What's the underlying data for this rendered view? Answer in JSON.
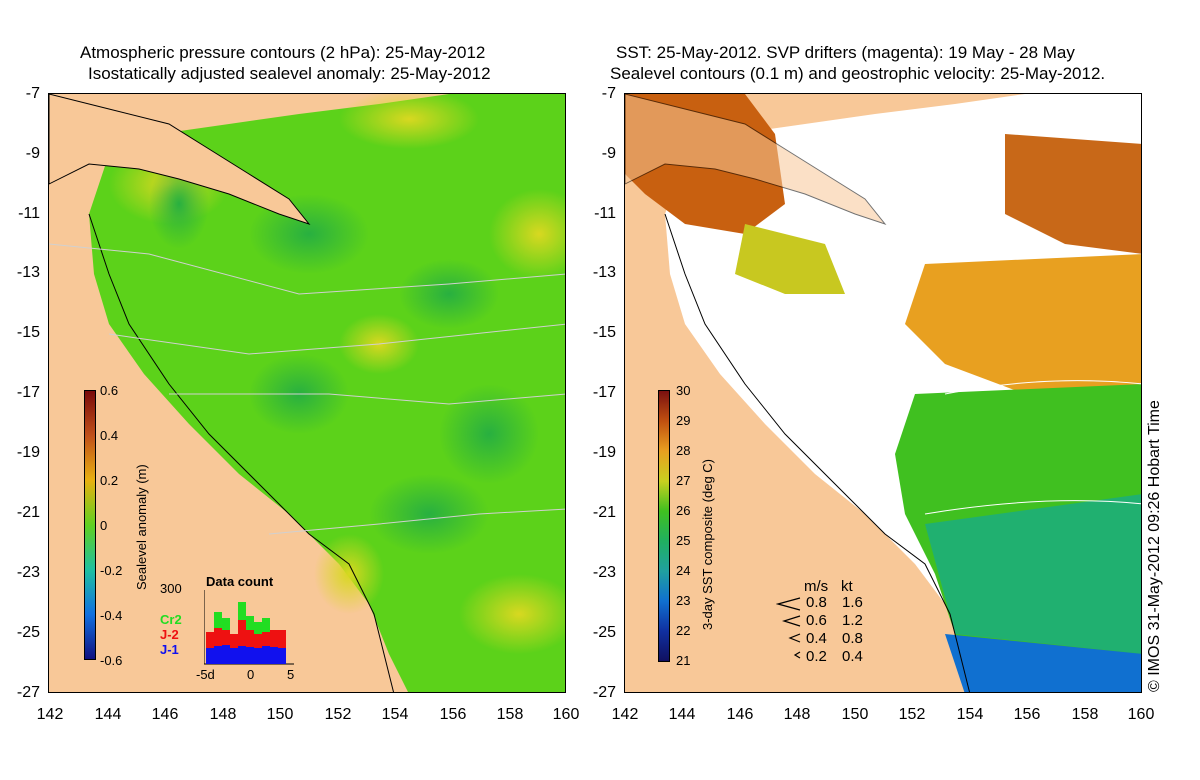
{
  "left_panel": {
    "title_line1": "Atmospheric pressure contours (2 hPa): 25-May-2012",
    "title_line2": "Isostatically adjusted sealevel anomaly: 25-May-2012",
    "y_ticks": [
      "-7",
      "-9",
      "-11",
      "-13",
      "-15",
      "-17",
      "-19",
      "-21",
      "-23",
      "-25",
      "-27"
    ],
    "x_ticks": [
      "142",
      "144",
      "146",
      "148",
      "150",
      "152",
      "154",
      "156",
      "158",
      "160"
    ],
    "colorbar": {
      "title": "Sealevel anomaly (m)",
      "ticks": [
        "0.6",
        "0.4",
        "0.2",
        "0",
        "-0.2",
        "-0.4",
        "-0.6"
      ],
      "colors": [
        "#7a0a0a",
        "#c0501a",
        "#e8b010",
        "#60d020",
        "#20c0a0",
        "#1070e0",
        "#101080"
      ]
    },
    "data_count": {
      "title": "Data count",
      "max_label": "300",
      "x_labels": [
        "-5d",
        "0",
        "5"
      ],
      "series": [
        {
          "name": "Cr2",
          "color": "#22dd22"
        },
        {
          "name": "J-2",
          "color": "#ee1111"
        },
        {
          "name": "J-1",
          "color": "#1111ee"
        }
      ]
    }
  },
  "right_panel": {
    "title_line1": "SST: 25-May-2012. SVP drifters (magenta): 19 May - 28 May",
    "title_line2": "Sealevel contours (0.1 m) and geostrophic velocity: 25-May-2012.",
    "y_ticks": [
      "-7",
      "-9",
      "-11",
      "-13",
      "-15",
      "-17",
      "-19",
      "-21",
      "-23",
      "-25",
      "-27"
    ],
    "x_ticks": [
      "142",
      "144",
      "146",
      "148",
      "150",
      "152",
      "154",
      "156",
      "158",
      "160"
    ],
    "colorbar": {
      "title": "3-day SST composite (deg C)",
      "ticks": [
        "30",
        "29",
        "28",
        "27",
        "26",
        "25",
        "24",
        "23",
        "22",
        "21"
      ],
      "colors": [
        "#7a1010",
        "#c05010",
        "#e8a020",
        "#c8d020",
        "#40c020",
        "#20b060",
        "#20a0a0",
        "#1070d0",
        "#1030a0",
        "#101060"
      ]
    },
    "velocity_legend": {
      "header_ms": "m/s",
      "header_kt": "kt",
      "rows": [
        {
          "ms": "0.8",
          "kt": "1.6"
        },
        {
          "ms": "0.6",
          "kt": "1.2"
        },
        {
          "ms": "0.4",
          "kt": "0.8"
        },
        {
          "ms": "0.2",
          "kt": "0.4"
        }
      ]
    }
  },
  "copyright": "© IMOS 31-May-2012 09:26 Hobart Time",
  "colors": {
    "land": "#f8c898",
    "ocean_green": "#5cd21a",
    "ocean_yellow": "#b8e020",
    "sst_missing": "#ffffff"
  }
}
